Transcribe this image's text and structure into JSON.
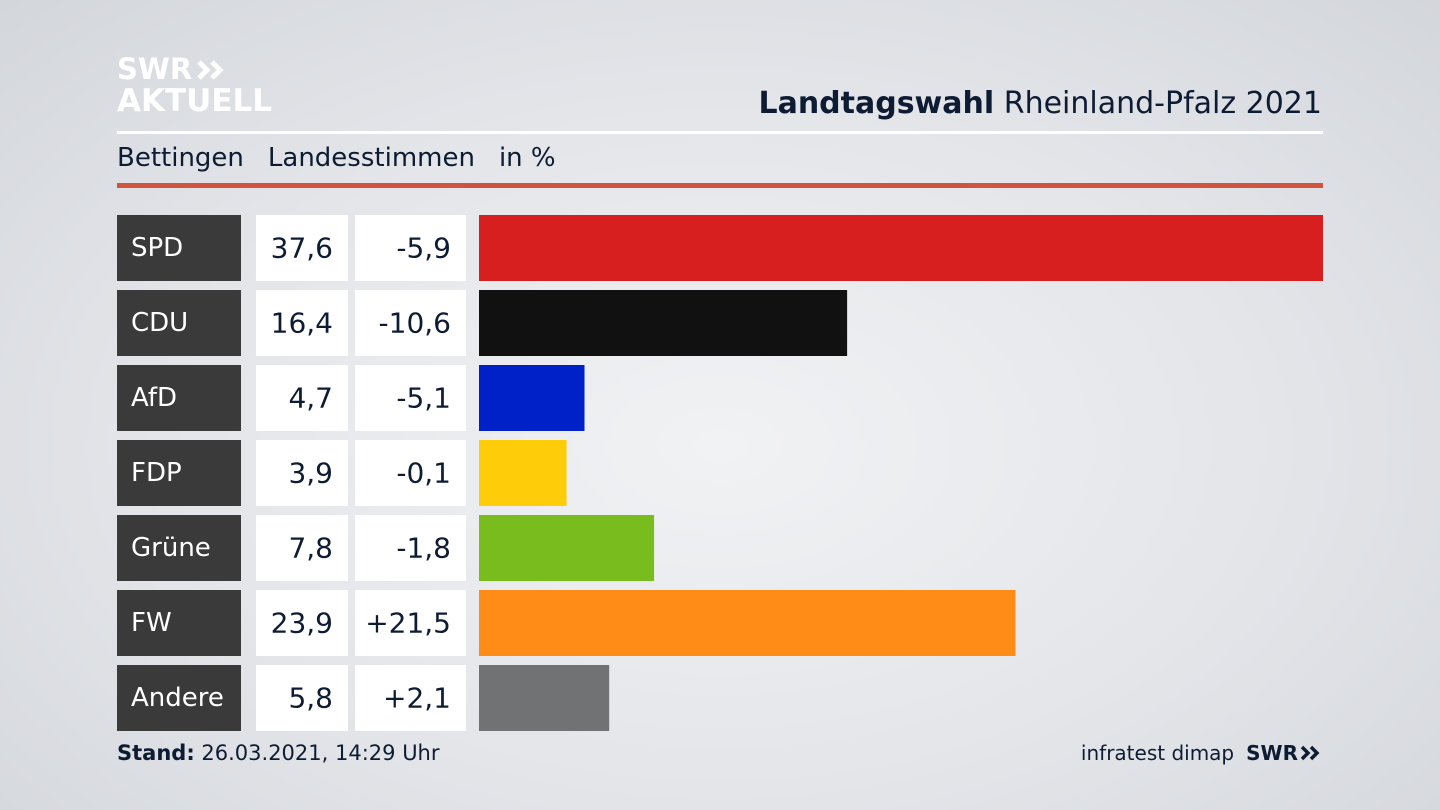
{
  "logo": {
    "line1": "SWR",
    "line2": "AKTUELL"
  },
  "header": {
    "title_bold": "Landtagswahl",
    "title_regular": "Rheinland-Pfalz 2021"
  },
  "subheader": {
    "place": "Bettingen",
    "measure": "Landesstimmen",
    "unit": "in %"
  },
  "footer": {
    "stand_label": "Stand:",
    "stand_value": "26.03.2021, 14:29 Uhr",
    "source": "infratest dimap",
    "brand": "SWR"
  },
  "chart_data": {
    "type": "bar",
    "orientation": "horizontal",
    "title": "Landtagswahl Rheinland-Pfalz 2021",
    "categories": [
      "SPD",
      "CDU",
      "AfD",
      "FDP",
      "Grüne",
      "FW",
      "Andere"
    ],
    "values": [
      37.6,
      16.4,
      4.7,
      3.9,
      7.8,
      23.9,
      5.8
    ],
    "value_labels": [
      "37,6",
      "16,4",
      "4,7",
      "3,9",
      "7,8",
      "23,9",
      "5,8"
    ],
    "changes": [
      -5.9,
      -10.6,
      -5.1,
      -0.1,
      -1.8,
      21.5,
      2.1
    ],
    "change_labels": [
      "-5,9",
      "-10,6",
      "-5,1",
      "-0,1",
      "-1,8",
      "+21,5",
      "+2,1"
    ],
    "colors": [
      "#d81f1f",
      "#111111",
      "#0020c8",
      "#ffcc0a",
      "#79bc1d",
      "#ff8c16",
      "#717274"
    ],
    "xlim": [
      0,
      37.6
    ],
    "grid": false,
    "legend": "none"
  }
}
